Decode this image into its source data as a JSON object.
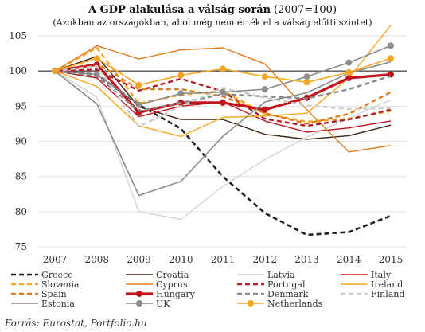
{
  "chart_data": {
    "type": "line",
    "title": "A GDP alakulása a válság során",
    "title_suffix": "(2007=100)",
    "subtitle": "(Azokban az országokban, ahol még nem érték el a válság előtti szintet)",
    "source": "Forrás: Eurostat, Portfolio.hu",
    "x": [
      "2007",
      "2008",
      "2009",
      "2010",
      "2011",
      "2012",
      "2013",
      "2014",
      "2015"
    ],
    "ylim": [
      75,
      105
    ],
    "yticks": [
      75,
      80,
      85,
      90,
      95,
      100,
      105
    ],
    "grid": true,
    "legend_position": "bottom",
    "series": [
      {
        "name": "Greece",
        "color": "#222222",
        "dash": "6,4",
        "width": 2.6,
        "marker": false,
        "values": [
          100,
          99.5,
          95.2,
          91.8,
          85.0,
          79.8,
          76.7,
          77.1,
          79.4
        ]
      },
      {
        "name": "Croatia",
        "color": "#3a2418",
        "dash": "",
        "width": 1.4,
        "marker": false,
        "values": [
          100,
          102.1,
          94.9,
          93.1,
          93.1,
          91.0,
          90.3,
          90.8,
          92.3
        ]
      },
      {
        "name": "Latvia",
        "color": "#d4d4d4",
        "dash": "",
        "width": 1.4,
        "marker": false,
        "values": [
          100,
          96.3,
          80.0,
          78.9,
          83.6,
          87.4,
          90.6,
          93.3,
          95.9
        ]
      },
      {
        "name": "Italy",
        "color": "#c0141e",
        "dash": "",
        "width": 1.4,
        "marker": false,
        "values": [
          100,
          99.0,
          93.5,
          95.0,
          95.6,
          92.9,
          91.3,
          91.9,
          92.9
        ]
      },
      {
        "name": "Slovenia",
        "color": "#f5a623",
        "dash": "6,4",
        "width": 2.4,
        "marker": false,
        "values": [
          100,
          103.3,
          95.4,
          96.6,
          97.2,
          93.9,
          92.8,
          93.2,
          94.3
        ]
      },
      {
        "name": "Cyprus",
        "color": "#e07b1a",
        "dash": "",
        "width": 1.4,
        "marker": false,
        "values": [
          100,
          103.6,
          101.7,
          103.0,
          103.3,
          101.0,
          94.5,
          88.5,
          89.4
        ]
      },
      {
        "name": "Portugal",
        "color": "#b01e25",
        "dash": "6,4",
        "width": 2.4,
        "marker": false,
        "values": [
          100,
          100.2,
          97.2,
          98.9,
          97.1,
          93.2,
          92.2,
          93.1,
          94.5
        ]
      },
      {
        "name": "Ireland",
        "color": "#f5a623",
        "dash": "",
        "width": 1.4,
        "marker": false,
        "values": [
          100,
          97.8,
          92.2,
          90.7,
          93.4,
          93.6,
          94.0,
          99.0,
          106.5
        ]
      },
      {
        "name": "Spain",
        "color": "#e07b1a",
        "dash": "6,4",
        "width": 2.4,
        "marker": false,
        "values": [
          100,
          101.1,
          97.4,
          97.4,
          96.4,
          94.0,
          92.5,
          93.9,
          97.0
        ]
      },
      {
        "name": "Hungary",
        "color": "#c0141e",
        "dash": "",
        "width": 3.2,
        "marker": true,
        "marker_color": "#c0141e",
        "values": [
          100,
          100.9,
          94.1,
          95.5,
          95.5,
          94.5,
          96.2,
          99.0,
          99.5
        ]
      },
      {
        "name": "Denmark",
        "color": "#888888",
        "dash": "6,4",
        "width": 2.4,
        "marker": false,
        "values": [
          100,
          99.3,
          94.3,
          95.5,
          96.7,
          96.4,
          96.1,
          97.4,
          99.3
        ]
      },
      {
        "name": "Finland",
        "color": "#cccccc",
        "dash": "6,4",
        "width": 2.4,
        "marker": false,
        "values": [
          100,
          100.7,
          92.1,
          95.0,
          97.6,
          96.2,
          95.1,
          94.6,
          94.7
        ]
      },
      {
        "name": "Estonia",
        "color": "#8c8c8c",
        "dash": "",
        "width": 1.6,
        "marker": false,
        "values": [
          100,
          95.3,
          82.3,
          84.3,
          90.7,
          95.6,
          96.9,
          99.7,
          101.3
        ]
      },
      {
        "name": "UK",
        "color": "#8c8c8c",
        "dash": "",
        "width": 1.6,
        "marker": true,
        "marker_color": "#8c8c8c",
        "values": [
          100,
          99.5,
          95.2,
          96.8,
          97.0,
          97.4,
          99.2,
          101.2,
          103.6
        ]
      },
      {
        "name": "Netherlands",
        "color": "#f5a623",
        "dash": "",
        "width": 1.6,
        "marker": true,
        "marker_color": "#f5a623",
        "values": [
          100,
          101.8,
          98.0,
          99.4,
          100.3,
          99.2,
          98.4,
          99.8,
          101.8
        ]
      }
    ]
  }
}
